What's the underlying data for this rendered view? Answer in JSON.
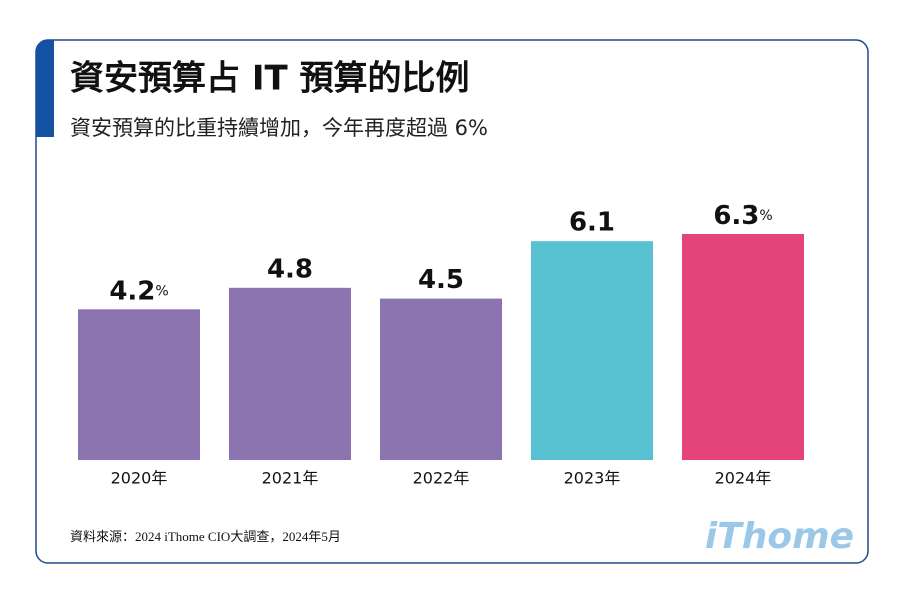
{
  "chart_data": {
    "type": "bar",
    "title": "資安預算占 IT 預算的比例",
    "subtitle": "資安預算的比重持續增加，今年再度超過 6%",
    "categories": [
      "2020年",
      "2021年",
      "2022年",
      "2023年",
      "2024年"
    ],
    "values": [
      4.2,
      4.8,
      4.5,
      6.1,
      6.3
    ],
    "value_labels": [
      "4.2%",
      "4.8",
      "4.5",
      "6.1",
      "6.3%"
    ],
    "colors": [
      "#8b74b0",
      "#8b74b0",
      "#8b74b0",
      "#57c1d1",
      "#e5447b"
    ],
    "source": "資料來源：2024 iThome CIO大調查，2024年5月",
    "logo": "iThome"
  }
}
